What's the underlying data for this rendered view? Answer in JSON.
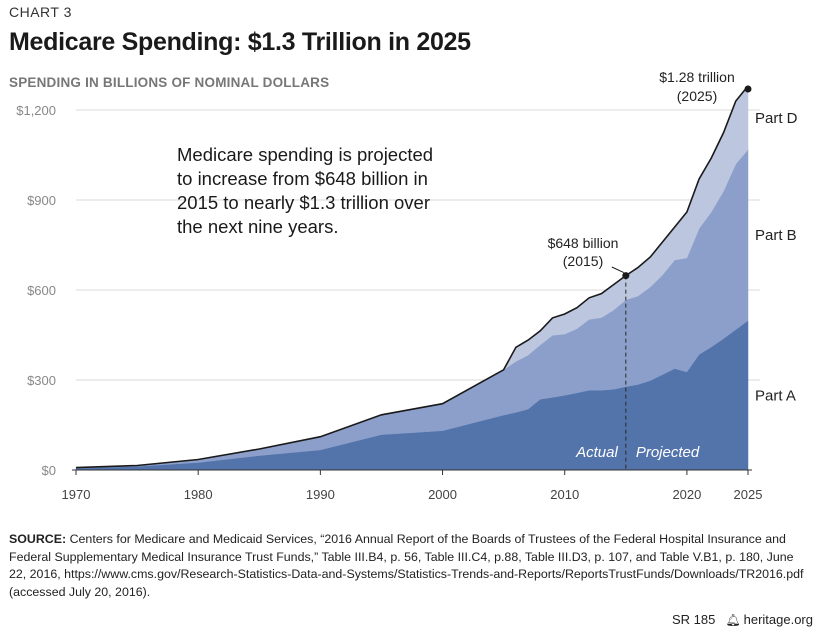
{
  "header": {
    "chart_number": "CHART 3",
    "title": "Medicare Spending: $1.3 Trillion in 2025",
    "subtitle": "SPENDING IN BILLIONS OF NOMINAL DOLLARS"
  },
  "chart_data": {
    "type": "area",
    "stacked": true,
    "title": "Medicare Spending: $1.3 Trillion in 2025",
    "ylabel": "SPENDING IN BILLIONS OF NOMINAL DOLLARS",
    "xlim": [
      1970,
      2025
    ],
    "ylim": [
      0,
      1200
    ],
    "x_ticks": [
      "1970",
      "1980",
      "1990",
      "2000",
      "2010",
      "2020",
      "2025"
    ],
    "y_ticks": [
      "$0",
      "$300",
      "$600",
      "$900",
      "$1,200"
    ],
    "grid": "horizontal",
    "x": [
      1970,
      1975,
      1980,
      1985,
      1990,
      1995,
      2000,
      2005,
      2006,
      2007,
      2008,
      2009,
      2010,
      2011,
      2012,
      2013,
      2014,
      2015,
      2016,
      2017,
      2018,
      2019,
      2020,
      2021,
      2022,
      2023,
      2024,
      2025
    ],
    "series": [
      {
        "name": "Part A",
        "color": "#5373ab",
        "values": [
          6,
          12,
          25,
          48,
          67,
          118,
          131,
          183,
          192,
          203,
          236,
          242,
          249,
          257,
          266,
          266,
          269,
          278,
          285,
          298,
          318,
          338,
          327,
          385,
          410,
          438,
          468,
          498
        ]
      },
      {
        "name": "Part B",
        "color": "#8b9fca",
        "values": [
          2,
          3,
          10,
          22,
          44,
          66,
          90,
          151,
          170,
          180,
          181,
          207,
          204,
          214,
          236,
          242,
          264,
          289,
          295,
          312,
          332,
          362,
          380,
          420,
          450,
          492,
          552,
          570
        ]
      },
      {
        "name": "Part D",
        "color": "#bcc6df",
        "values": [
          0,
          0,
          0,
          0,
          0,
          0,
          0,
          0,
          47,
          50,
          47,
          58,
          67,
          70,
          72,
          80,
          85,
          81,
          95,
          100,
          110,
          110,
          153,
          165,
          180,
          195,
          210,
          212
        ]
      }
    ],
    "annotations": [
      {
        "text": "$648 billion",
        "text2": "(2015)",
        "x": 2015,
        "y": 648
      },
      {
        "text": "$1.28 trillion",
        "text2": "(2025)",
        "x": 2025,
        "y": 1280
      }
    ],
    "period_labels": {
      "actual": "Actual",
      "projected": "Projected",
      "divider_x": 2015
    },
    "note_lines": [
      "Medicare spending is projected",
      "to increase from $648 billion in",
      "2015 to nearly $1.3 trillion over",
      "the next nine years."
    ]
  },
  "source": {
    "label": "SOURCE:",
    "text": " Centers for Medicare and Medicaid Services, “2016 Annual Report of the Boards of Trustees of the Federal Hospital Insurance and Federal Supplementary Medical Insurance Trust Funds,” Table III.B4, p. 56, Table III.C4, p.88, Table III.D3, p. 107, and Table V.B1, p. 180, June 22, 2016, https://www.cms.gov/Research-Statistics-Data-and-Systems/Statistics-Trends-and-Reports/ReportsTrustFunds/Downloads/TR2016.pdf (accessed July 20, 2016)."
  },
  "footer": {
    "report_id": "SR 185",
    "site": "heritage.org",
    "icon": "bell-icon"
  }
}
